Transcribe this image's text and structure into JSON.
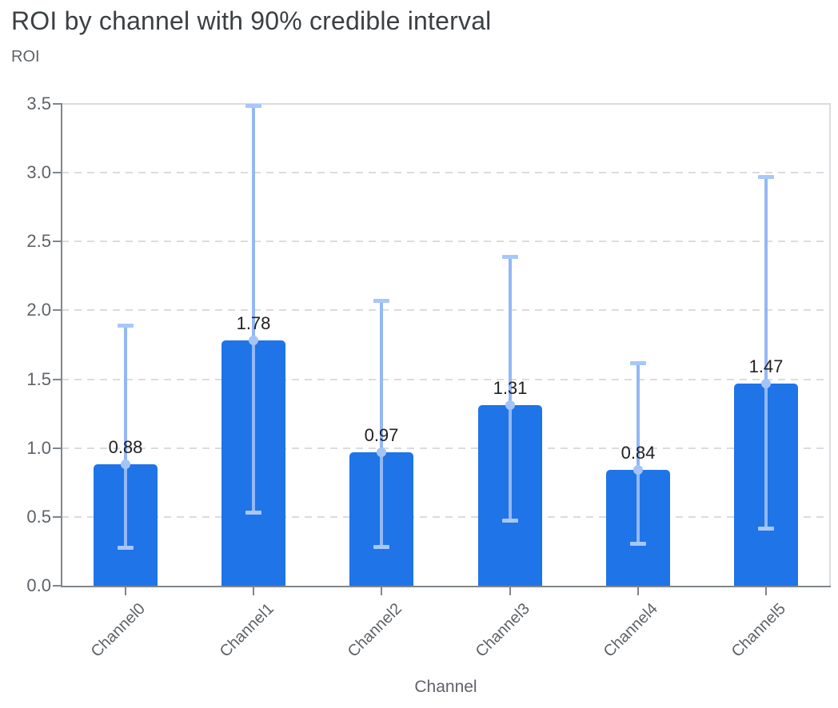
{
  "header": {
    "title": "ROI by channel with 90% credible interval",
    "y_axis_title": "ROI",
    "x_axis_title": "Channel"
  },
  "chart_data": {
    "type": "bar",
    "title": "ROI by channel with 90% credible interval",
    "xlabel": "Channel",
    "ylabel": "ROI",
    "categories": [
      "Channel0",
      "Channel1",
      "Channel2",
      "Channel3",
      "Channel4",
      "Channel5"
    ],
    "values": [
      0.88,
      1.78,
      0.97,
      1.31,
      0.84,
      1.47
    ],
    "value_labels": [
      "0.88",
      "1.78",
      "0.97",
      "1.31",
      "0.84",
      "1.47"
    ],
    "error_interval": "90% credible interval",
    "error_low": [
      0.27,
      0.53,
      0.28,
      0.47,
      0.3,
      0.41
    ],
    "error_high": [
      1.89,
      3.49,
      2.07,
      2.39,
      1.62,
      2.97
    ],
    "ylim": [
      0,
      3.5
    ],
    "yticks": [
      "0.0",
      "0.5",
      "1.0",
      "1.5",
      "2.0",
      "2.5",
      "3.0",
      "3.5"
    ],
    "grid": "horizontal-dashed",
    "legend": "none",
    "colors": {
      "bar": "#1f74e8",
      "error_line": "#94b8f4",
      "error_cap": "#a8c7fa",
      "marker": "#a4c4f7",
      "grid": "#dadce0",
      "axis": "#80868b",
      "title_text": "#3c4043",
      "axis_text": "#5f6368",
      "value_text": "#202124"
    }
  }
}
